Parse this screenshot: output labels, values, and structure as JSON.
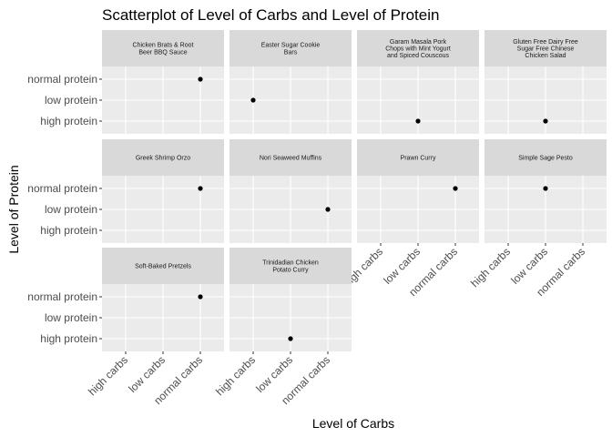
{
  "chart_data": {
    "type": "scatter",
    "title": "Scatterplot of Level of Carbs and Level of Protein",
    "xlabel": "Level of Carbs",
    "ylabel": "Level of Protein",
    "x_categories": [
      "high carbs",
      "low carbs",
      "normal carbs"
    ],
    "y_categories": [
      "high protein",
      "low protein",
      "normal protein"
    ],
    "grid": true,
    "facets": [
      {
        "label": "Chicken Brats & Root Beer BBQ Sauce",
        "points": [
          {
            "x": "normal carbs",
            "y": "normal protein"
          }
        ]
      },
      {
        "label": "Easter Sugar Cookie Bars",
        "points": [
          {
            "x": "high carbs",
            "y": "low protein"
          }
        ]
      },
      {
        "label": "Garam Masala Pork Chops with Mint Yogurt and Spiced Couscous",
        "points": [
          {
            "x": "low carbs",
            "y": "high protein"
          }
        ]
      },
      {
        "label": "Gluten Free Dairy Free Sugar Free Chinese Chicken Salad",
        "points": [
          {
            "x": "low carbs",
            "y": "high protein"
          }
        ]
      },
      {
        "label": "Greek Shrimp Orzo",
        "points": [
          {
            "x": "normal carbs",
            "y": "normal protein"
          }
        ]
      },
      {
        "label": "Nori Seaweed Muffins",
        "points": [
          {
            "x": "normal carbs",
            "y": "low protein"
          }
        ]
      },
      {
        "label": "Prawn Curry",
        "points": [
          {
            "x": "normal carbs",
            "y": "normal protein"
          }
        ]
      },
      {
        "label": "Simple Sage Pesto",
        "points": [
          {
            "x": "low carbs",
            "y": "normal protein"
          }
        ]
      },
      {
        "label": "Soft-Baked Pretzels",
        "points": [
          {
            "x": "normal carbs",
            "y": "normal protein"
          }
        ]
      },
      {
        "label": "Trinidadian Chicken Potato Curry",
        "points": [
          {
            "x": "low carbs",
            "y": "high protein"
          }
        ]
      }
    ],
    "colors": {
      "panel_background": "#ebebeb",
      "strip_background": "#d9d9d9",
      "grid_line": "#ffffff",
      "point": "#000000"
    }
  }
}
